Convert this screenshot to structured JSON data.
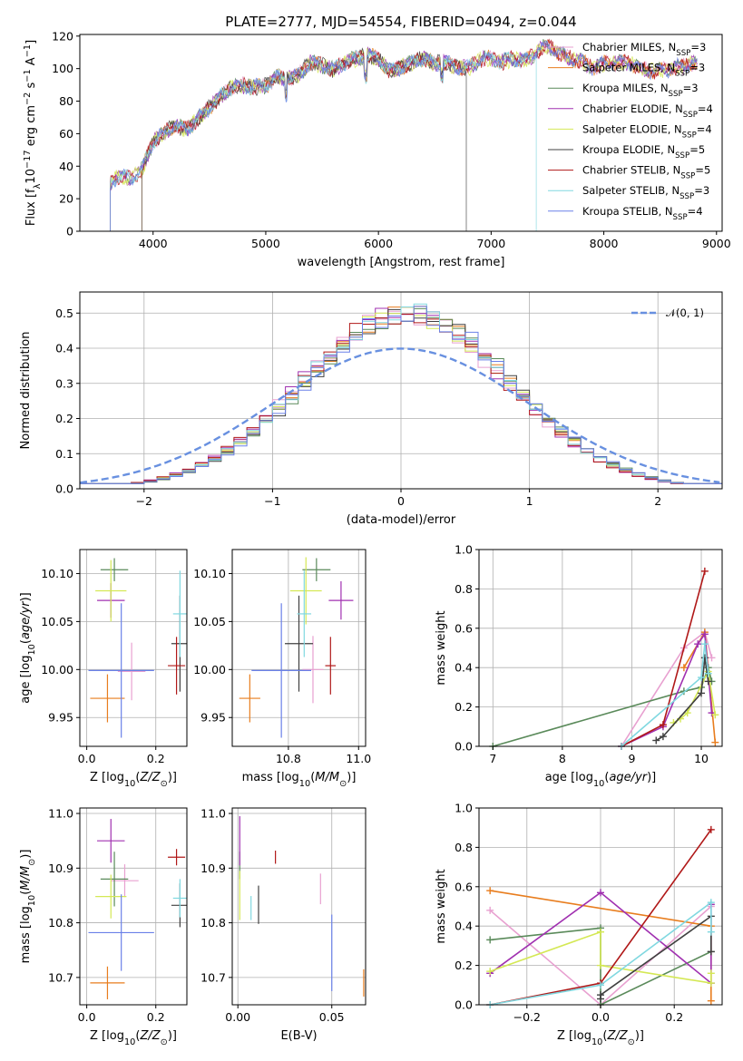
{
  "colors": [
    "#e8a0d0",
    "#e87d1e",
    "#5a8a5a",
    "#a030b0",
    "#d4e854",
    "#404040",
    "#b01818",
    "#80d8e0",
    "#6a80e8"
  ],
  "gauss_color": "#6890e0",
  "chart_data": [
    {
      "id": "spectrum",
      "type": "line",
      "title": "PLATE=2777, MJD=54554, FIBERID=0494, z=0.044",
      "xlabel": "wavelength [Angstrom, rest frame]",
      "ylabel": "Flux [f_λ10^-17 erg cm^-2 s^-1 A^-1]",
      "xlim": [
        3350,
        9050
      ],
      "ylim": [
        0,
        121
      ],
      "xticks": [
        4000,
        5000,
        6000,
        7000,
        8000,
        9000
      ],
      "yticks": [
        0,
        20,
        40,
        60,
        80,
        100,
        120
      ],
      "grid": false,
      "legend_position": "upper right",
      "series": [
        {
          "name": "Chabrier MILES, N_SSP=3"
        },
        {
          "name": "Salpeter MILES, N_SSP=3"
        },
        {
          "name": "Kroupa MILES, N_SSP=3"
        },
        {
          "name": "Chabrier ELODIE, N_SSP=4"
        },
        {
          "name": "Salpeter ELODIE, N_SSP=4"
        },
        {
          "name": "Kroupa ELODIE, N_SSP=5"
        },
        {
          "name": "Chabrier STELIB, N_SSP=5"
        },
        {
          "name": "Salpeter STELIB, N_SSP=3"
        },
        {
          "name": "Kroupa STELIB, N_SSP=4"
        }
      ],
      "continuum": {
        "x": [
          3620,
          3700,
          3800,
          3900,
          4000,
          4100,
          4200,
          4300,
          4400,
          4500,
          4600,
          4700,
          4800,
          4900,
          5000,
          5100,
          5200,
          5300,
          5400,
          5500,
          5600,
          5700,
          5800,
          5900,
          6000,
          6100,
          6200,
          6300,
          6400,
          6500,
          6600,
          6700,
          6800,
          6900,
          7000,
          7100,
          7200,
          7300,
          7400,
          7500,
          7600,
          7700,
          7800,
          7900,
          8000,
          8100,
          8200,
          8300,
          8400,
          8500,
          8600,
          8700,
          8800
        ],
        "y": [
          28,
          33,
          35,
          40,
          55,
          58,
          63,
          63,
          72,
          78,
          82,
          86,
          88,
          90,
          92,
          96,
          92,
          94,
          103,
          104,
          102,
          104,
          104,
          106,
          106,
          101,
          103,
          103,
          104,
          101,
          105,
          103,
          102,
          104,
          104,
          103,
          108,
          107,
          111,
          112,
          107,
          106,
          107,
          103,
          103,
          101,
          102,
          102,
          101,
          101,
          99,
          99,
          102
        ]
      },
      "cutoffs": [
        3620,
        3900,
        3620,
        3620,
        3620,
        3900,
        3620,
        3620,
        3620
      ],
      "drops": [
        null,
        null,
        null,
        null,
        null,
        6780,
        null,
        7400,
        null
      ]
    },
    {
      "id": "residuals",
      "type": "line",
      "xlabel": "(data-model)/error",
      "ylabel": "Normed distribution",
      "xlim": [
        -2.5,
        2.5
      ],
      "ylim": [
        0,
        0.56
      ],
      "xticks": [
        -2,
        -1,
        0,
        1,
        2
      ],
      "yticks": [
        0.0,
        0.1,
        0.2,
        0.3,
        0.4,
        0.5
      ],
      "grid": true,
      "legend": "𝒩(0, 1)",
      "legend_position": "upper right",
      "bin_width": 0.1,
      "hist_peak": 0.5,
      "hist_sigma": 0.8
    },
    {
      "id": "age_vs_Z",
      "type": "scatter",
      "xlabel": "Z [log10(Z/Z⊙)]",
      "ylabel": "age  [log10(age/yr)]",
      "xlim": [
        -0.02,
        0.29
      ],
      "ylim": [
        9.92,
        10.125
      ],
      "xticks": [
        0.0,
        0.2
      ],
      "yticks": [
        9.95,
        10.0,
        10.05,
        10.1
      ],
      "grid": true,
      "points": [
        {
          "x": 0.13,
          "y": 9.998,
          "xerr": 0.04,
          "yerr": 0.03
        },
        {
          "x": 0.06,
          "y": 9.97,
          "xerr": 0.05,
          "yerr": 0.025
        },
        {
          "x": 0.08,
          "y": 10.104,
          "xerr": 0.04,
          "yerr": 0.012
        },
        {
          "x": 0.07,
          "y": 10.072,
          "xerr": 0.04,
          "yerr": 0.018
        },
        {
          "x": 0.07,
          "y": 10.082,
          "xerr": 0.045,
          "yerr": 0.032
        },
        {
          "x": 0.27,
          "y": 10.027,
          "xerr": 0.025,
          "yerr": 0.05
        },
        {
          "x": 0.26,
          "y": 10.004,
          "xerr": 0.025,
          "yerr": 0.03
        },
        {
          "x": 0.27,
          "y": 10.058,
          "xerr": 0.02,
          "yerr": 0.045
        },
        {
          "x": 0.1,
          "y": 9.999,
          "xerr": 0.095,
          "yerr": 0.07
        }
      ]
    },
    {
      "id": "age_vs_mass",
      "type": "scatter",
      "xlabel": "mass [log10(M/M⊙)]",
      "ylabel": "",
      "xlim": [
        10.64,
        11.02
      ],
      "ylim": [
        9.92,
        10.125
      ],
      "xticks": [
        10.8,
        11.0
      ],
      "yticks": [
        9.95,
        10.0,
        10.05,
        10.1
      ],
      "grid": true,
      "points": [
        {
          "x": 10.87,
          "y": 10.0,
          "xerr": 0.03,
          "yerr": 0.035
        },
        {
          "x": 10.69,
          "y": 9.97,
          "xerr": 0.03,
          "yerr": 0.025
        },
        {
          "x": 10.88,
          "y": 10.104,
          "xerr": 0.04,
          "yerr": 0.012
        },
        {
          "x": 10.95,
          "y": 10.072,
          "xerr": 0.035,
          "yerr": 0.02
        },
        {
          "x": 10.85,
          "y": 10.082,
          "xerr": 0.045,
          "yerr": 0.035
        },
        {
          "x": 10.83,
          "y": 10.027,
          "xerr": 0.04,
          "yerr": 0.05
        },
        {
          "x": 10.92,
          "y": 10.004,
          "xerr": 0.015,
          "yerr": 0.03
        },
        {
          "x": 10.845,
          "y": 10.058,
          "xerr": 0.02,
          "yerr": 0.045
        },
        {
          "x": 10.78,
          "y": 9.999,
          "xerr": 0.085,
          "yerr": 0.07
        }
      ]
    },
    {
      "id": "massweight_vs_age",
      "type": "line",
      "xlabel": "age  [log10(age/yr)]",
      "ylabel": "mass weight",
      "xlim": [
        6.8,
        10.3
      ],
      "ylim": [
        0,
        1.0
      ],
      "xticks": [
        7,
        8,
        9,
        10
      ],
      "yticks": [
        0.0,
        0.2,
        0.4,
        0.6,
        0.8,
        1.0
      ],
      "grid": true,
      "series": [
        {
          "x": [
            8.85,
            9.75,
            10.05,
            10.15
          ],
          "y": [
            0.0,
            0.5,
            0.58,
            0.45
          ]
        },
        {
          "x": [
            9.75,
            10.05,
            10.2
          ],
          "y": [
            0.4,
            0.58,
            0.02
          ]
        },
        {
          "x": [
            7.0,
            9.75,
            10.0,
            10.1,
            10.15
          ],
          "y": [
            0.0,
            0.28,
            0.3,
            0.4,
            0.33
          ]
        },
        {
          "x": [
            8.85,
            9.45,
            9.95,
            10.05,
            10.15
          ],
          "y": [
            0.0,
            0.1,
            0.52,
            0.57,
            0.17
          ]
        },
        {
          "x": [
            9.6,
            9.7,
            9.8,
            10.1,
            10.2
          ],
          "y": [
            0.12,
            0.14,
            0.17,
            0.38,
            0.16
          ]
        },
        {
          "x": [
            9.35,
            9.45,
            10.0,
            10.05,
            10.1
          ],
          "y": [
            0.03,
            0.05,
            0.27,
            0.45,
            0.33
          ]
        },
        {
          "x": [
            8.85,
            9.45,
            10.05
          ],
          "y": [
            0.0,
            0.11,
            0.89
          ]
        },
        {
          "x": [
            8.85,
            10.0,
            10.05,
            10.1
          ],
          "y": [
            0.0,
            0.35,
            0.52,
            0.37
          ]
        },
        {
          "x": [],
          "y": []
        }
      ]
    },
    {
      "id": "mass_vs_Z",
      "type": "scatter",
      "xlabel": "Z [log10(Z/Z⊙)]",
      "ylabel": "mass [log10(M/M⊙)]",
      "xlim": [
        -0.02,
        0.29
      ],
      "ylim": [
        10.65,
        11.01
      ],
      "xticks": [
        0.0,
        0.2
      ],
      "yticks": [
        10.7,
        10.8,
        10.9,
        11.0
      ],
      "grid": true,
      "points": [
        {
          "x": 0.11,
          "y": 10.877,
          "xerr": 0.04,
          "yerr": 0.03
        },
        {
          "x": 0.06,
          "y": 10.69,
          "xerr": 0.05,
          "yerr": 0.03
        },
        {
          "x": 0.08,
          "y": 10.88,
          "xerr": 0.04,
          "yerr": 0.05
        },
        {
          "x": 0.07,
          "y": 10.95,
          "xerr": 0.04,
          "yerr": 0.04
        },
        {
          "x": 0.07,
          "y": 10.848,
          "xerr": 0.045,
          "yerr": 0.04
        },
        {
          "x": 0.27,
          "y": 10.832,
          "xerr": 0.025,
          "yerr": 0.04
        },
        {
          "x": 0.26,
          "y": 10.92,
          "xerr": 0.025,
          "yerr": 0.015
        },
        {
          "x": 0.27,
          "y": 10.845,
          "xerr": 0.02,
          "yerr": 0.035
        },
        {
          "x": 0.1,
          "y": 10.782,
          "xerr": 0.095,
          "yerr": 0.07
        }
      ]
    },
    {
      "id": "mass_vs_EBV",
      "type": "scatter",
      "xlabel": "E(B-V)",
      "ylabel": "",
      "xlim": [
        -0.003,
        0.068
      ],
      "ylim": [
        10.65,
        11.01
      ],
      "xticks": [
        0.0,
        0.05
      ],
      "yticks": [
        10.7,
        10.8,
        10.9,
        11.0
      ],
      "grid": true,
      "points": [
        {
          "x": 0.044,
          "y": 10.862,
          "xerr": 0,
          "yerr": 0.028
        },
        {
          "x": 0.067,
          "y": 10.69,
          "xerr": 0,
          "yerr": 0.025
        },
        {
          "x": 0.001,
          "y": 10.905,
          "xerr": 0,
          "yerr": 0.025
        },
        {
          "x": 0.001,
          "y": 10.95,
          "xerr": 0,
          "yerr": 0.045
        },
        {
          "x": 0.001,
          "y": 10.85,
          "xerr": 0,
          "yerr": 0.045
        },
        {
          "x": 0.011,
          "y": 10.833,
          "xerr": 0,
          "yerr": 0.035
        },
        {
          "x": 0.02,
          "y": 10.92,
          "xerr": 0,
          "yerr": 0.012
        },
        {
          "x": 0.007,
          "y": 10.827,
          "xerr": 0,
          "yerr": 0.022
        },
        {
          "x": 0.05,
          "y": 10.745,
          "xerr": 0,
          "yerr": 0.07
        }
      ]
    },
    {
      "id": "massweight_vs_Z",
      "type": "line",
      "xlabel": "Z [log10(Z/Z⊙)]",
      "ylabel": "mass weight",
      "xlim": [
        -0.33,
        0.33
      ],
      "ylim": [
        0,
        1.0
      ],
      "xticks": [
        -0.2,
        0.0,
        0.2
      ],
      "yticks": [
        0.0,
        0.2,
        0.4,
        0.6,
        0.8,
        1.0
      ],
      "grid": true,
      "series": [
        {
          "x": [
            -0.3,
            0.0,
            0.3
          ],
          "y": [
            0.48,
            0.0,
            0.5
          ]
        },
        {
          "x": [
            -0.3,
            0.3,
            0.3
          ],
          "y": [
            0.58,
            0.4,
            0.02
          ]
        },
        {
          "x": [
            -0.3,
            0.0,
            0.0,
            0.3
          ],
          "y": [
            0.33,
            0.39,
            0.0,
            0.27
          ]
        },
        {
          "x": [
            -0.3,
            0.0,
            0.3,
            0.3
          ],
          "y": [
            0.16,
            0.57,
            0.11,
            0.51
          ]
        },
        {
          "x": [
            -0.3,
            0.0,
            0.0,
            0.3,
            0.3
          ],
          "y": [
            0.17,
            0.37,
            0.2,
            0.11,
            0.16
          ]
        },
        {
          "x": [
            0.0,
            0.0,
            0.3,
            0.3
          ],
          "y": [
            0.03,
            0.05,
            0.45,
            0.27
          ]
        },
        {
          "x": [
            -0.3,
            0.0,
            0.3
          ],
          "y": [
            0.0,
            0.11,
            0.89
          ]
        },
        {
          "x": [
            -0.3,
            0.0,
            0.3,
            0.3
          ],
          "y": [
            0.0,
            0.1,
            0.52,
            0.37
          ]
        },
        {
          "x": [],
          "y": []
        }
      ]
    }
  ]
}
